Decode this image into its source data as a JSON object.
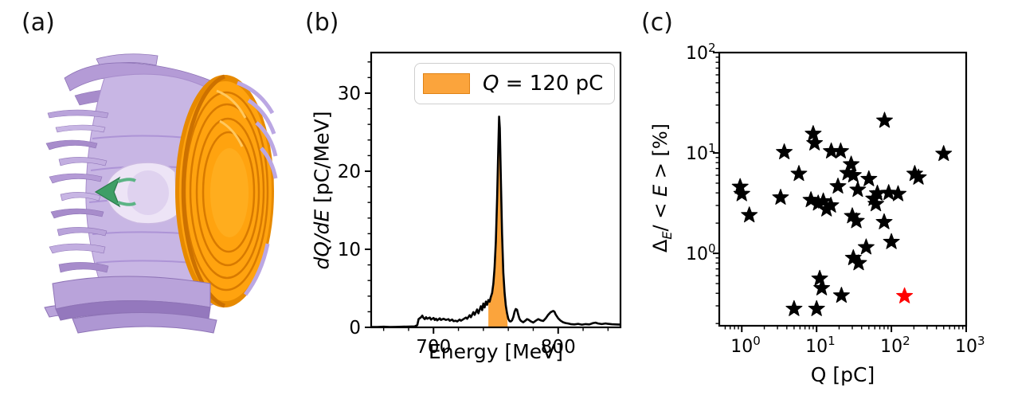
{
  "panels": {
    "a": {
      "label": "(a)",
      "render": {
        "icon": "plasma-wakefield-isosurface",
        "colors": {
          "plasma_light": "#d9cdec",
          "plasma_mid": "#b9a3da",
          "plasma_dark": "#9478bd",
          "pulse_orange": "#ffa30f",
          "pulse_rim": "#e78a00",
          "pulse_groove": "#d87a00",
          "arrow_green": "#3e9e66"
        }
      }
    },
    "b": {
      "label": "(b)",
      "xlabel": "Energy [MeV]",
      "ylabel_italic": "dQ/dE",
      "ylabel_rest": " [pC/MeV]",
      "legend": {
        "italic": "Q",
        "rest": " = 120 pC"
      }
    },
    "c": {
      "label": "(c)",
      "xlabel": "Q [pC]",
      "ylabel": {
        "p1": "Δ",
        "p2": "E",
        "p3": "/ < ",
        "p4": "E",
        "p5": " > [%]"
      }
    }
  },
  "chart_data": [
    {
      "panel": "b",
      "type": "area",
      "xlabel": "Energy [MeV]",
      "ylabel": "dQ/dE [pC/MeV]",
      "xlim": [
        650,
        850
      ],
      "ylim": [
        0,
        35.2
      ],
      "xticks": [
        700,
        800
      ],
      "yticks": [
        0,
        10,
        20,
        30
      ],
      "x_minor_step": 20,
      "y_minor_step": 2,
      "grid": false,
      "legend_position": "upper center",
      "legend_label": "Q = 120 pC",
      "line_color": "#000000",
      "fill_color": "#FBA43C",
      "fill_edge": "#E08214",
      "fill_between": [
        744,
        759.5
      ],
      "series": [
        {
          "name": "spectrum",
          "points": [
            [
              650,
              0.05
            ],
            [
              655,
              0.05
            ],
            [
              660,
              0.08
            ],
            [
              665,
              0.05
            ],
            [
              670,
              0.06
            ],
            [
              675,
              0.08
            ],
            [
              680,
              0.1
            ],
            [
              685,
              0.12
            ],
            [
              687,
              0.3
            ],
            [
              688,
              1.05
            ],
            [
              690,
              1.3
            ],
            [
              691,
              1.5
            ],
            [
              692,
              1.2
            ],
            [
              693,
              1.05
            ],
            [
              694,
              1.3
            ],
            [
              695,
              1.1
            ],
            [
              697,
              1.25
            ],
            [
              698,
              1.0
            ],
            [
              700,
              1.2
            ],
            [
              701,
              0.95
            ],
            [
              702,
              1.1
            ],
            [
              703,
              0.9
            ],
            [
              705,
              1.15
            ],
            [
              706,
              0.95
            ],
            [
              708,
              1.1
            ],
            [
              710,
              0.95
            ],
            [
              712,
              1.05
            ],
            [
              713,
              0.85
            ],
            [
              715,
              1.0
            ],
            [
              716,
              0.8
            ],
            [
              718,
              0.85
            ],
            [
              719,
              0.75
            ],
            [
              721,
              1.0
            ],
            [
              722,
              0.85
            ],
            [
              724,
              1.05
            ],
            [
              726,
              1.25
            ],
            [
              727,
              1.1
            ],
            [
              729,
              1.55
            ],
            [
              730,
              1.3
            ],
            [
              732,
              1.95
            ],
            [
              733,
              1.6
            ],
            [
              735,
              2.3
            ],
            [
              736,
              1.8
            ],
            [
              738,
              2.7
            ],
            [
              739,
              2.2
            ],
            [
              740,
              3.05
            ],
            [
              741,
              2.55
            ],
            [
              742,
              3.3
            ],
            [
              743,
              2.9
            ],
            [
              744,
              3.5
            ],
            [
              745,
              3.3
            ],
            [
              746,
              3.9
            ],
            [
              747,
              4.4
            ],
            [
              748,
              5.6
            ],
            [
              749,
              7.6
            ],
            [
              750,
              11.0
            ],
            [
              751,
              16.5
            ],
            [
              752,
              23.0
            ],
            [
              752.6,
              27.0
            ],
            [
              753.2,
              25.5
            ],
            [
              754,
              19.0
            ],
            [
              755,
              12.0
            ],
            [
              756,
              7.0
            ],
            [
              757,
              4.4
            ],
            [
              758,
              2.8
            ],
            [
              759,
              1.8
            ],
            [
              760,
              1.1
            ],
            [
              761,
              0.8
            ],
            [
              762,
              0.75
            ],
            [
              763,
              0.9
            ],
            [
              764,
              1.3
            ],
            [
              765,
              2.0
            ],
            [
              766,
              2.35
            ],
            [
              767,
              2.25
            ],
            [
              768,
              1.6
            ],
            [
              769,
              1.1
            ],
            [
              770,
              0.85
            ],
            [
              772,
              0.65
            ],
            [
              774,
              0.9
            ],
            [
              775,
              1.05
            ],
            [
              776,
              1.0
            ],
            [
              778,
              0.78
            ],
            [
              780,
              0.62
            ],
            [
              782,
              0.85
            ],
            [
              784,
              1.05
            ],
            [
              786,
              0.9
            ],
            [
              788,
              0.82
            ],
            [
              790,
              1.15
            ],
            [
              792,
              1.6
            ],
            [
              794,
              1.95
            ],
            [
              796,
              2.1
            ],
            [
              797,
              2.0
            ],
            [
              798,
              1.65
            ],
            [
              800,
              1.15
            ],
            [
              802,
              0.85
            ],
            [
              804,
              0.65
            ],
            [
              806,
              0.55
            ],
            [
              808,
              0.5
            ],
            [
              810,
              0.42
            ],
            [
              813,
              0.38
            ],
            [
              816,
              0.45
            ],
            [
              819,
              0.35
            ],
            [
              822,
              0.42
            ],
            [
              825,
              0.38
            ],
            [
              828,
              0.55
            ],
            [
              830,
              0.6
            ],
            [
              832,
              0.5
            ],
            [
              835,
              0.42
            ],
            [
              838,
              0.5
            ],
            [
              840,
              0.45
            ],
            [
              843,
              0.4
            ],
            [
              846,
              0.38
            ],
            [
              850,
              0.35
            ]
          ]
        }
      ]
    },
    {
      "panel": "c",
      "type": "scatter",
      "xlabel": "Q [pC]",
      "ylabel": "ΔE/ <E> [%]",
      "xscale": "log",
      "yscale": "log",
      "xlim": [
        0.5,
        1000
      ],
      "ylim": [
        0.19,
        100
      ],
      "xtick_exps": [
        0,
        1,
        2,
        3
      ],
      "ytick_exps": [
        0,
        1,
        2
      ],
      "grid": false,
      "marker": "star",
      "series": [
        {
          "name": "reported-beams",
          "color": "#000000",
          "points": [
            [
              0.95,
              4.6
            ],
            [
              1.0,
              3.9
            ],
            [
              1.26,
              2.4
            ],
            [
              3.3,
              3.6
            ],
            [
              3.7,
              10.2
            ],
            [
              5.0,
              0.28
            ],
            [
              5.8,
              6.2
            ],
            [
              8.4,
              3.4
            ],
            [
              9.0,
              15.5
            ],
            [
              9.4,
              12.5
            ],
            [
              10.0,
              0.28
            ],
            [
              10.5,
              3.15
            ],
            [
              11.0,
              0.56
            ],
            [
              11.7,
              0.45
            ],
            [
              12.3,
              3.3
            ],
            [
              13.6,
              2.75
            ],
            [
              15.5,
              3.0
            ],
            [
              15.7,
              10.4
            ],
            [
              19.3,
              4.65
            ],
            [
              21.0,
              10.4
            ],
            [
              21.5,
              0.38
            ],
            [
              26.0,
              6.3
            ],
            [
              29.0,
              7.7
            ],
            [
              30.0,
              2.35
            ],
            [
              31.0,
              6.0
            ],
            [
              31.0,
              0.9
            ],
            [
              34.0,
              2.1
            ],
            [
              35.5,
              4.3
            ],
            [
              36.5,
              0.8
            ],
            [
              46.0,
              1.15
            ],
            [
              50.0,
              5.5
            ],
            [
              58.0,
              3.5
            ],
            [
              62.0,
              3.1
            ],
            [
              65.0,
              3.95
            ],
            [
              80.0,
              2.05
            ],
            [
              81.0,
              21.0
            ],
            [
              92.0,
              4.0
            ],
            [
              100.0,
              1.3
            ],
            [
              123.0,
              3.9
            ],
            [
              205.0,
              6.2
            ],
            [
              230.0,
              5.7
            ],
            [
              500.0,
              9.8
            ]
          ]
        },
        {
          "name": "highlighted-beam",
          "color": "#ff0000",
          "points": [
            [
              150,
              0.375
            ]
          ]
        }
      ]
    }
  ]
}
